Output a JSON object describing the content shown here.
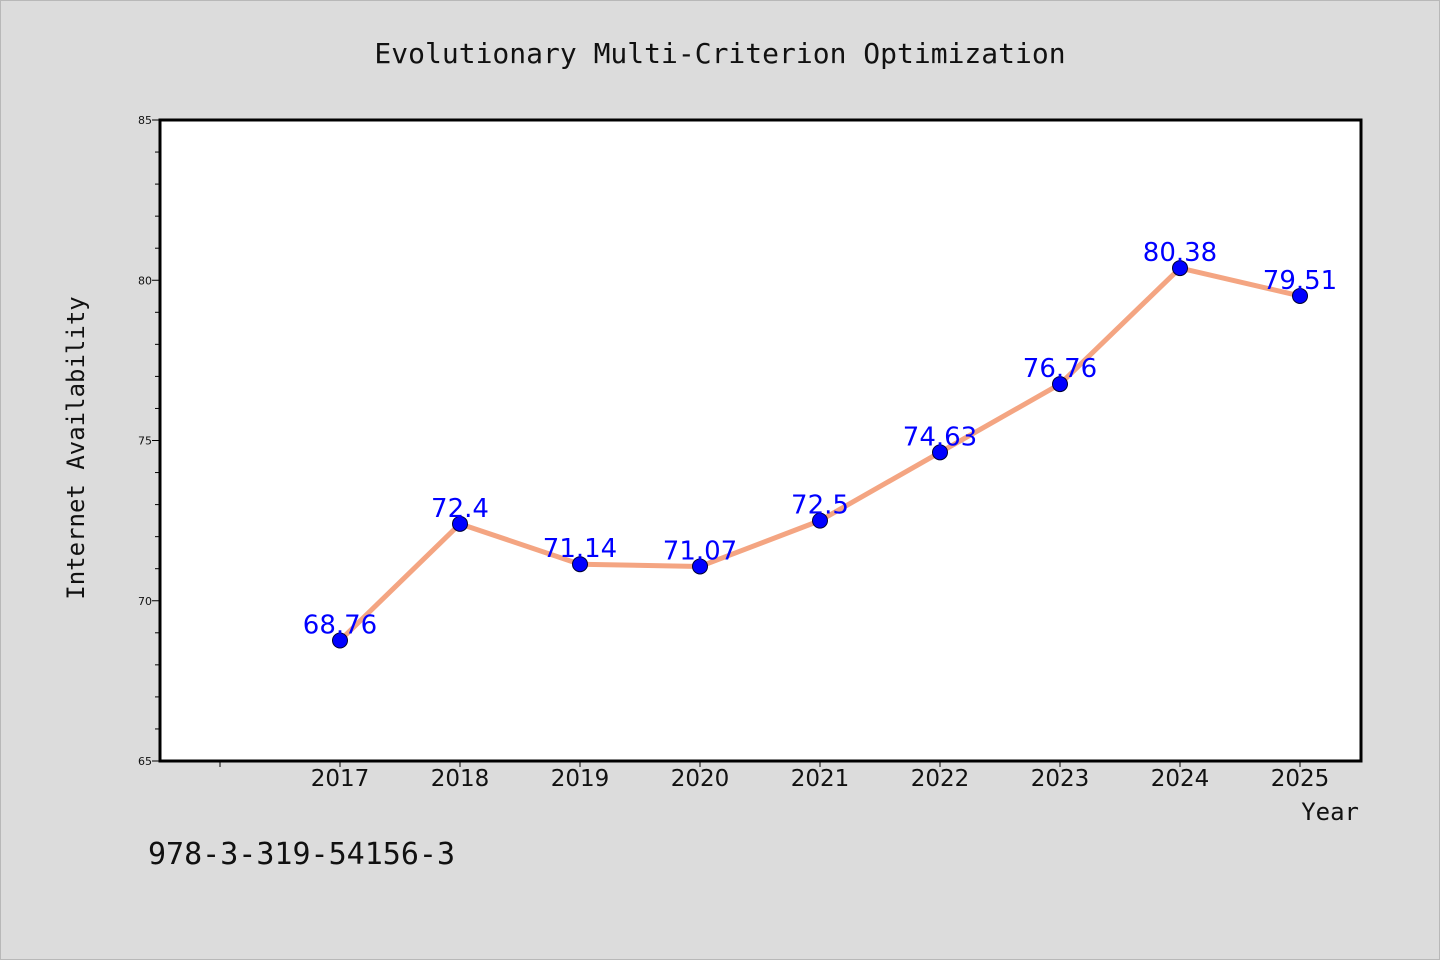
{
  "chart_data": {
    "type": "line",
    "title": "Evolutionary Multi-Criterion Optimization",
    "xlabel": "Year",
    "ylabel": "Internet Availability",
    "x": [
      "2017",
      "2018",
      "2019",
      "2020",
      "2021",
      "2022",
      "2023",
      "2024",
      "2025"
    ],
    "series": [
      {
        "values": [
          68.76,
          72.4,
          71.14,
          71.07,
          72.5,
          74.63,
          76.76,
          80.38,
          79.51
        ],
        "labels": [
          "68.76",
          "72.4",
          "71.14",
          "71.07",
          "72.5",
          "74.63",
          "76.76",
          "80.38",
          "79.51"
        ]
      }
    ],
    "ylim": [
      65,
      85
    ],
    "yticks": [
      "65",
      "70",
      "75",
      "80",
      "85"
    ],
    "grid": false,
    "legend": "none",
    "colors": {
      "line": "#f4a582",
      "marker": "#0000ff",
      "data_label": "#0000ff",
      "background": "#dcdcdc",
      "plot_area": "#ffffff"
    }
  },
  "footnote": "978-3-319-54156-3"
}
